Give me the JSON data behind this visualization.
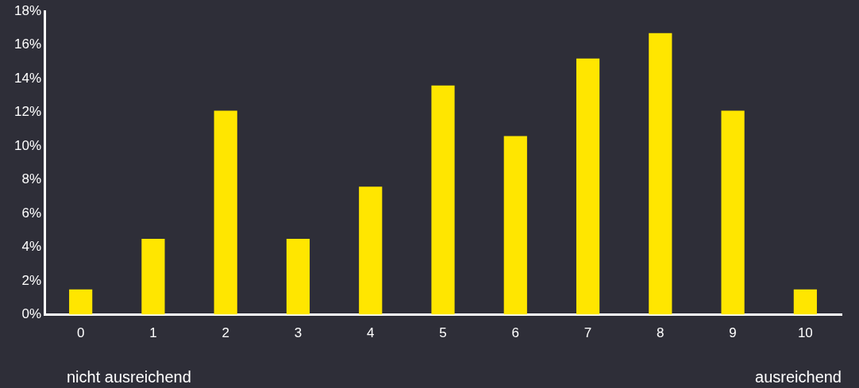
{
  "chart_data": {
    "type": "bar",
    "categories": [
      "0",
      "1",
      "2",
      "3",
      "4",
      "5",
      "6",
      "7",
      "8",
      "9",
      "10"
    ],
    "values": [
      1.5,
      4.5,
      12.1,
      4.5,
      7.6,
      13.6,
      10.6,
      15.2,
      16.7,
      12.1,
      1.5
    ],
    "color": "#ffe600",
    "ylim": [
      0,
      18
    ],
    "yticks": [
      {
        "value": 0,
        "label": "0%"
      },
      {
        "value": 2,
        "label": "2%"
      },
      {
        "value": 4,
        "label": "4%"
      },
      {
        "value": 6,
        "label": "6%"
      },
      {
        "value": 8,
        "label": "8%"
      },
      {
        "value": 10,
        "label": "10%"
      },
      {
        "value": 12,
        "label": "12%"
      },
      {
        "value": 14,
        "label": "14%"
      },
      {
        "value": 16,
        "label": "16%"
      },
      {
        "value": 18,
        "label": "18%"
      }
    ],
    "grid": false,
    "legend": false,
    "annotations": [
      "nicht ausreichend",
      "ausreichend"
    ]
  }
}
